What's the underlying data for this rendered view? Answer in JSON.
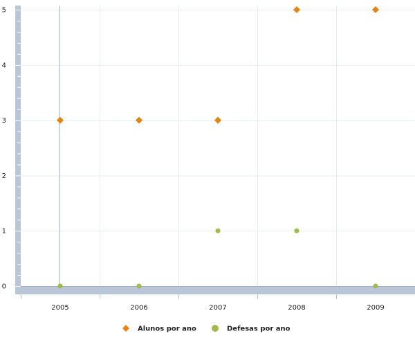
{
  "chart_data": {
    "type": "scatter",
    "title": "",
    "xlabel": "",
    "ylabel": "",
    "categories": [
      "2005",
      "2006",
      "2007",
      "2008",
      "2009"
    ],
    "y_ticks": [
      "0",
      "1",
      "2",
      "3",
      "4",
      "5"
    ],
    "ylim": [
      0,
      5
    ],
    "grid": true,
    "legend_position": "bottom",
    "series": [
      {
        "name": "Alunos por ano",
        "marker": "diamond",
        "color": "#E8830C",
        "values": [
          3,
          3,
          3,
          5,
          5
        ]
      },
      {
        "name": "Defesas por ano",
        "marker": "circle",
        "color": "#9DBB45",
        "values": [
          0,
          0,
          1,
          1,
          0
        ]
      }
    ]
  }
}
